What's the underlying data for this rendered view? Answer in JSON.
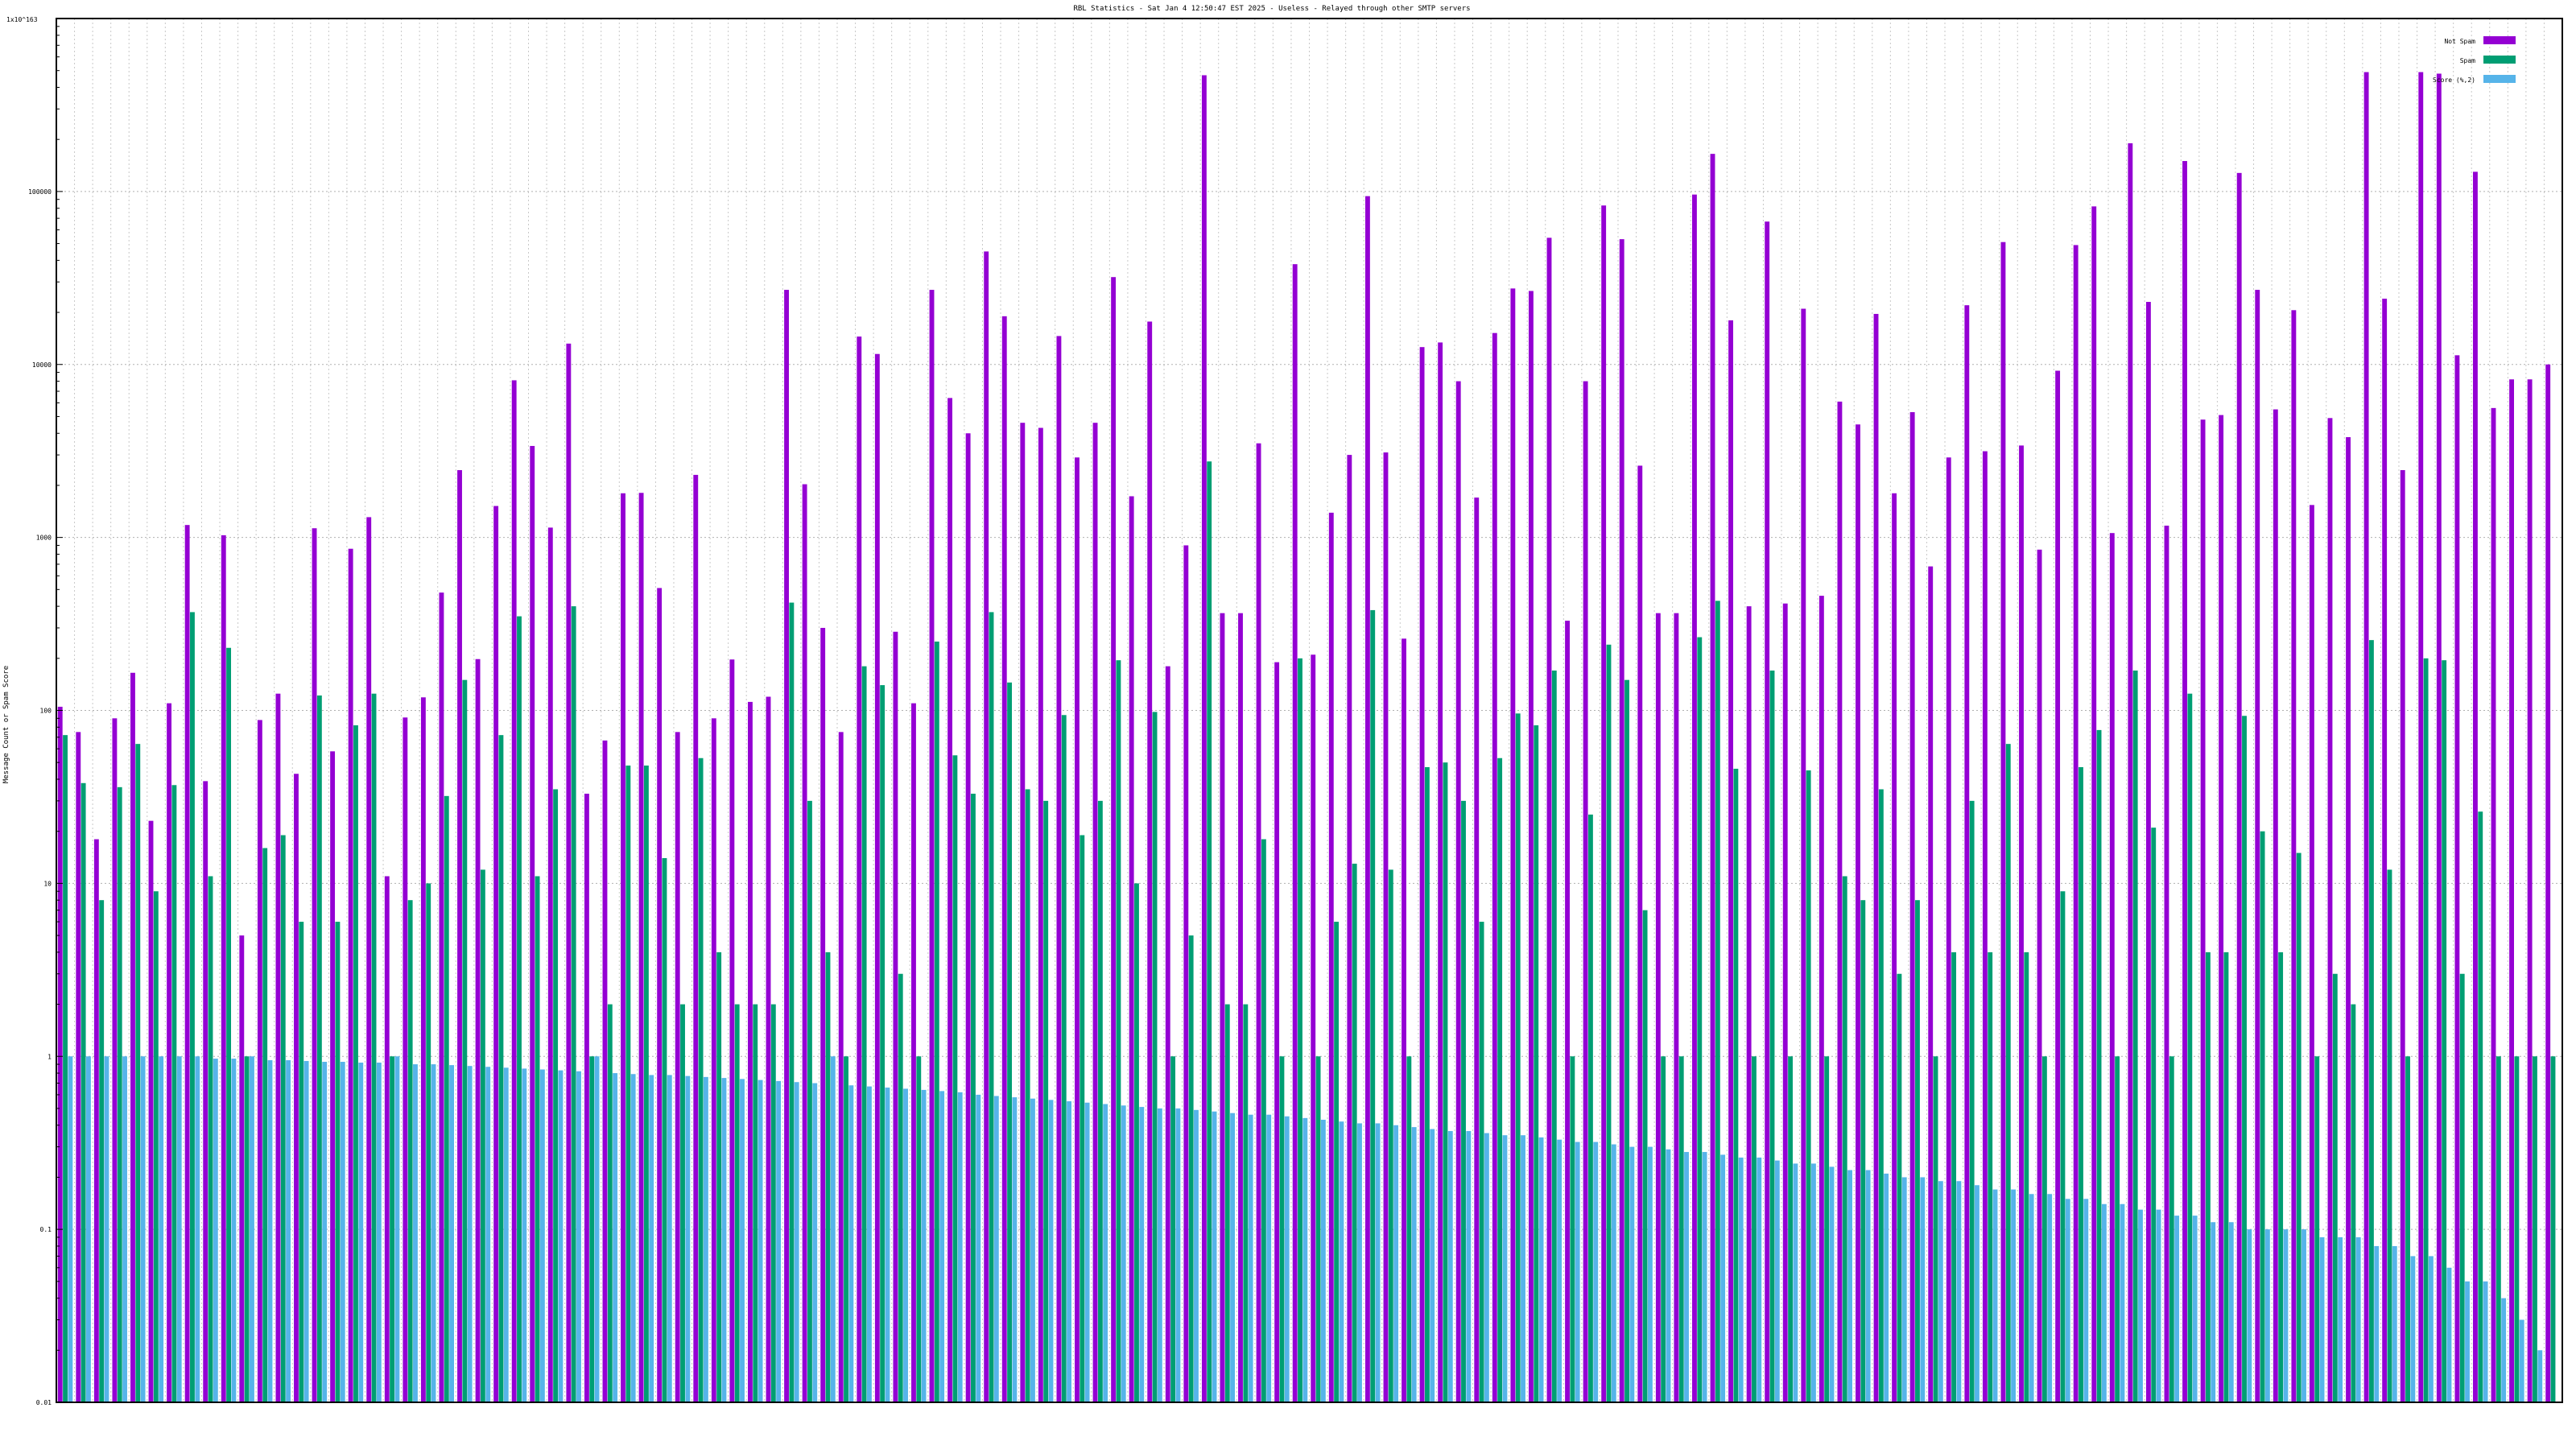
{
  "chart_data": {
    "type": "bar",
    "title": "RBL Statistics - Sat Jan  4 12:50:47 EST 2025 - Useless - Relayed through other SMTP servers",
    "ylabel": "Message Count or Spam Score",
    "y_top_label": "1x10^163",
    "yscale": "log",
    "ylim": [
      0.01,
      1000000
    ],
    "y_ticks": [
      {
        "value": 0.01,
        "label": "0.01"
      },
      {
        "value": 0.1,
        "label": "0.1"
      },
      {
        "value": 1,
        "label": "1"
      },
      {
        "value": 10,
        "label": "10"
      },
      {
        "value": 100,
        "label": "100"
      },
      {
        "value": 1000,
        "label": "1000"
      },
      {
        "value": 10000,
        "label": "10000"
      },
      {
        "value": 100000,
        "label": "100000"
      }
    ],
    "grid": true,
    "legend_position": "top-right",
    "series": [
      {
        "name": "Not Spam",
        "color": "#9400d3",
        "values": [
          105,
          75,
          18,
          90,
          165,
          23,
          110,
          1180,
          39,
          1030,
          5,
          88,
          125,
          43,
          1130,
          58,
          860,
          1310,
          11,
          91,
          119,
          480,
          2450,
          198,
          1520,
          8100,
          3380,
          1140,
          13200,
          33,
          67,
          1800,
          1810,
          510,
          75,
          2300,
          90,
          197,
          112,
          120,
          27000,
          2030,
          300,
          75,
          14500,
          11500,
          285,
          110,
          27000,
          6400,
          4000,
          45000,
          19000,
          4600,
          4300,
          14600,
          2900,
          4600,
          32000,
          1730,
          17700,
          180,
          900,
          470000,
          365,
          365,
          3500,
          190,
          38000,
          210,
          1390,
          3000,
          94000,
          3100,
          260,
          12600,
          13400,
          8000,
          1700,
          15200,
          27500,
          26600,
          54000,
          330,
          8000,
          83000,
          53000,
          2600,
          365,
          365,
          96000,
          165000,
          18000,
          400,
          67000,
          415,
          21000,
          460,
          6100,
          4500,
          19600,
          1800,
          5300,
          680,
          2900,
          22000,
          3150,
          51000,
          3400,
          850,
          9200,
          49000,
          82000,
          1060,
          190000,
          23000,
          1170,
          150000,
          4800,
          5100,
          128000,
          27000,
          5500,
          20600,
          1540,
          4900,
          3800,
          490000,
          24000,
          2450,
          490000,
          480000,
          11300,
          130000,
          5600,
          8200,
          8200,
          10000
        ]
      },
      {
        "name": "Spam",
        "color": "#009e73",
        "values": [
          72,
          38,
          8,
          36,
          64,
          9,
          37,
          370,
          11,
          230,
          1,
          16,
          19,
          6,
          122,
          6,
          82,
          125,
          1,
          8,
          10,
          32,
          150,
          12,
          72,
          350,
          11,
          35,
          400,
          1,
          2,
          48,
          48,
          14,
          2,
          53,
          4,
          2,
          2,
          2,
          420,
          30,
          4,
          1,
          180,
          140,
          3,
          1,
          250,
          55,
          33,
          370,
          145,
          35,
          30,
          94,
          19,
          30,
          195,
          10,
          98,
          1,
          5,
          2750,
          2,
          2,
          18,
          1,
          200,
          1,
          6,
          13,
          380,
          12,
          1,
          47,
          50,
          30,
          6,
          53,
          96,
          82,
          170,
          1,
          25,
          240,
          150,
          7,
          1,
          1,
          265,
          430,
          46,
          1,
          170,
          1,
          45,
          1,
          11,
          8,
          35,
          3,
          8,
          1,
          4,
          30,
          4,
          64,
          4,
          1,
          9,
          47,
          77,
          1,
          170,
          21,
          1,
          125,
          4,
          4,
          93,
          20,
          4,
          15,
          1,
          3,
          2,
          255,
          12,
          1,
          200,
          195,
          3,
          26,
          1,
          1,
          1,
          1
        ]
      },
      {
        "name": "Score (%,2)",
        "color": "#56b4e9",
        "values": [
          1,
          1,
          1,
          1,
          1,
          1,
          1,
          1,
          0.97,
          0.97,
          1,
          0.95,
          0.95,
          0.94,
          0.93,
          0.93,
          0.92,
          0.92,
          1,
          0.9,
          0.9,
          0.89,
          0.88,
          0.87,
          0.86,
          0.85,
          0.84,
          0.83,
          0.82,
          1,
          0.8,
          0.79,
          0.78,
          0.78,
          0.77,
          0.76,
          0.75,
          0.74,
          0.73,
          0.72,
          0.71,
          0.7,
          1,
          0.68,
          0.67,
          0.66,
          0.65,
          0.64,
          0.63,
          0.62,
          0.6,
          0.59,
          0.58,
          0.57,
          0.56,
          0.55,
          0.54,
          0.53,
          0.52,
          0.51,
          0.5,
          0.5,
          0.49,
          0.48,
          0.47,
          0.46,
          0.46,
          0.45,
          0.44,
          0.43,
          0.42,
          0.41,
          0.41,
          0.4,
          0.39,
          0.38,
          0.37,
          0.37,
          0.36,
          0.35,
          0.35,
          0.34,
          0.33,
          0.32,
          0.32,
          0.31,
          0.3,
          0.3,
          0.29,
          0.28,
          0.28,
          0.27,
          0.26,
          0.26,
          0.25,
          0.24,
          0.24,
          0.23,
          0.22,
          0.22,
          0.21,
          0.2,
          0.2,
          0.19,
          0.19,
          0.18,
          0.17,
          0.17,
          0.16,
          0.16,
          0.15,
          0.15,
          0.14,
          0.14,
          0.13,
          0.13,
          0.12,
          0.12,
          0.11,
          0.11,
          0.1,
          0.1,
          0.1,
          0.1,
          0.09,
          0.09,
          0.09,
          0.08,
          0.08,
          0.07,
          0.07,
          0.06,
          0.05,
          0.05,
          0.04,
          0.03,
          0.02,
          0.01,
          0.01,
          1
        ]
      }
    ]
  }
}
